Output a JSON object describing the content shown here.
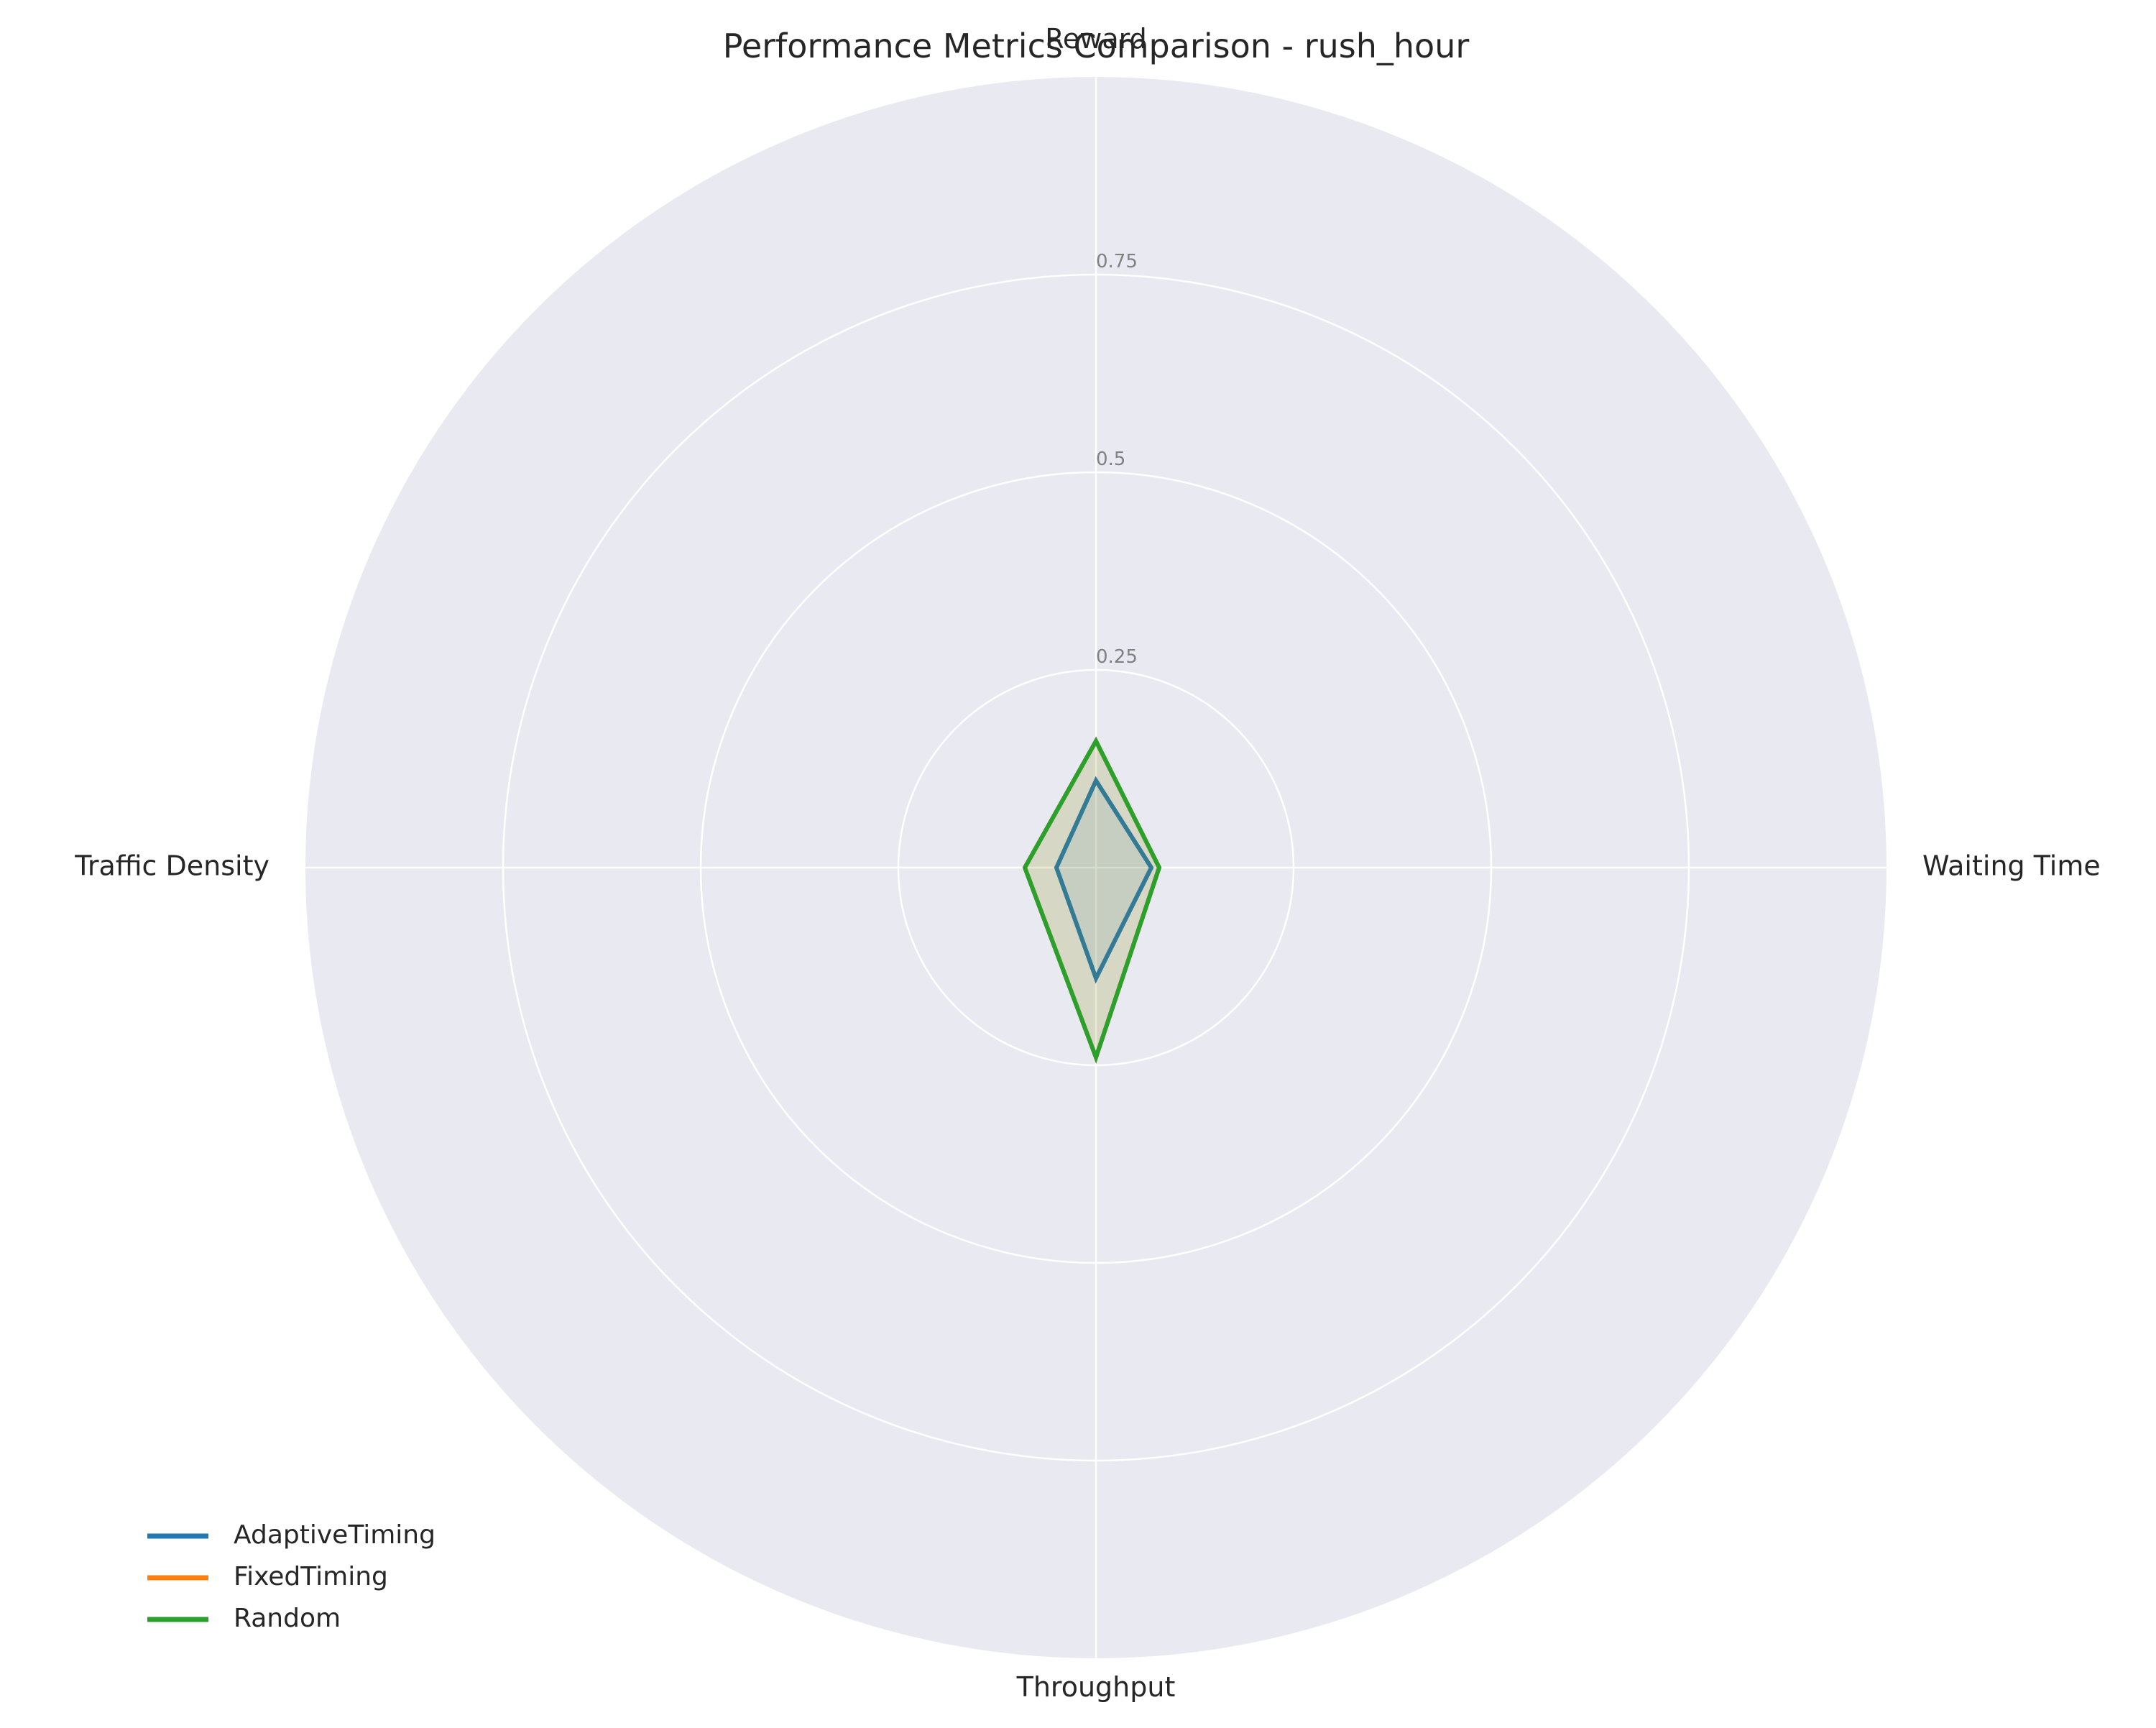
{
  "chart_data": {
    "type": "radar",
    "title": "Performance Metrics Comparison - rush_hour",
    "axes": [
      "Reward",
      "Waiting Time",
      "Throughput",
      "Traffic Density"
    ],
    "rlim": [
      0,
      1
    ],
    "rticks": [
      0.25,
      0.5,
      0.75
    ],
    "rtick_labels": [
      "0.25",
      "0.5",
      "0.75"
    ],
    "grid": true,
    "legend_position": "bottom-left",
    "series": [
      {
        "name": "AdaptiveTiming",
        "color": "#1f77b4",
        "values": [
          0.11,
          0.07,
          0.14,
          0.05
        ]
      },
      {
        "name": "FixedTiming",
        "color": "#ff7f0e",
        "values": [
          0.16,
          0.08,
          0.24,
          0.09
        ]
      },
      {
        "name": "Random",
        "color": "#2ca02c",
        "values": [
          0.16,
          0.08,
          0.24,
          0.09
        ]
      }
    ],
    "background_color": "#e9e9f1",
    "grid_color": "#ffffff"
  }
}
